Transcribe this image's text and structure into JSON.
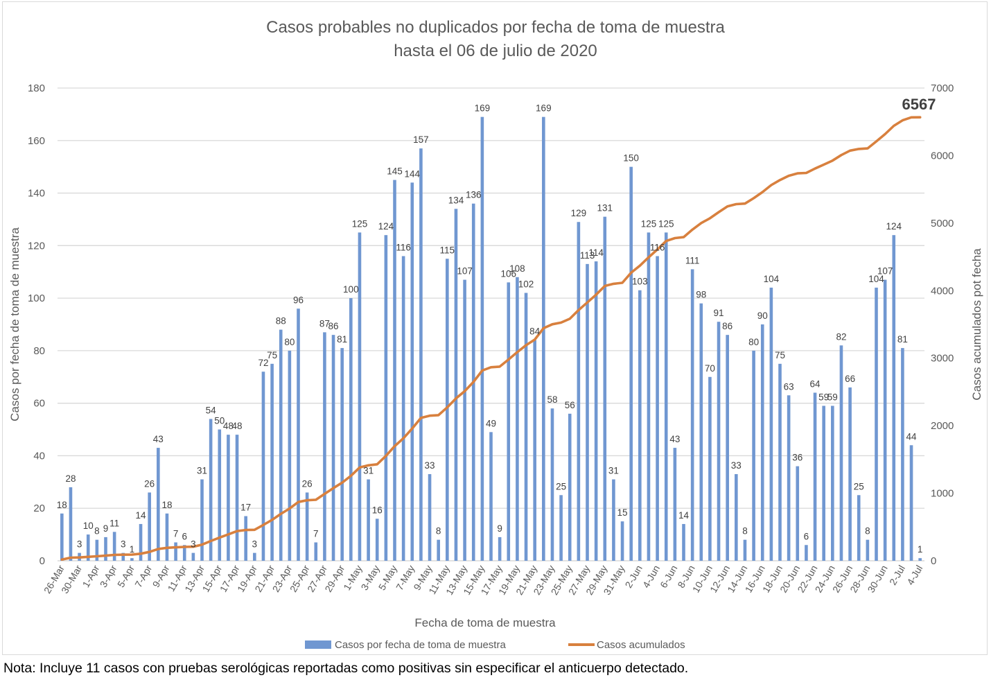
{
  "chart_data": {
    "type": "bar+line",
    "title": [
      "Casos probables no duplicados por fecha de toma de muestra",
      "hasta el 06 de julio de 2020"
    ],
    "xlabel": "Fecha de toma de muestra",
    "ylabel": "Casos por fecha de toma de muestra",
    "y2label": "Casos acumulados pot fecha",
    "ylim": [
      0,
      180
    ],
    "yticks": [
      0,
      20,
      40,
      60,
      80,
      100,
      120,
      140,
      160,
      180
    ],
    "y2lim": [
      0,
      7000
    ],
    "y2ticks": [
      0,
      1000,
      2000,
      3000,
      4000,
      5000,
      6000,
      7000
    ],
    "grid": true,
    "legend_position": "bottom",
    "categories": [
      "26-Mar",
      "28-Mar",
      "30-Mar",
      "31-Mar",
      "1-Apr",
      "2-Apr",
      "3-Apr",
      "4-Apr",
      "5-Apr",
      "6-Apr",
      "7-Apr",
      "8-Apr",
      "9-Apr",
      "10-Apr",
      "11-Apr",
      "12-Apr",
      "13-Apr",
      "14-Apr",
      "15-Apr",
      "16-Apr",
      "17-Apr",
      "18-Apr",
      "19-Apr",
      "20-Apr",
      "21-Apr",
      "22-Apr",
      "23-Apr",
      "24-Apr",
      "25-Apr",
      "26-Apr",
      "27-Apr",
      "28-Apr",
      "29-Apr",
      "30-Apr",
      "1-May",
      "2-May",
      "3-May",
      "4-May",
      "5-May",
      "6-May",
      "7-May",
      "8-May",
      "9-May",
      "10-May",
      "11-May",
      "12-May",
      "13-May",
      "14-May",
      "15-May",
      "16-May",
      "17-May",
      "18-May",
      "19-May",
      "20-May",
      "21-May",
      "22-May",
      "23-May",
      "24-May",
      "25-May",
      "26-May",
      "27-May",
      "28-May",
      "29-May",
      "30-May",
      "31-May",
      "1-Jun",
      "2-Jun",
      "3-Jun",
      "4-Jun",
      "5-Jun",
      "6-Jun",
      "7-Jun",
      "8-Jun",
      "9-Jun",
      "10-Jun",
      "11-Jun",
      "12-Jun",
      "13-Jun",
      "14-Jun",
      "15-Jun",
      "16-Jun",
      "17-Jun",
      "18-Jun",
      "19-Jun",
      "20-Jun",
      "21-Jun",
      "22-Jun",
      "23-Jun",
      "24-Jun",
      "25-Jun",
      "26-Jun",
      "27-Jun",
      "28-Jun",
      "29-Jun",
      "30-Jun",
      "1-Jul",
      "2-Jul",
      "3-Jul",
      "4-Jul"
    ],
    "tick_label_every": 2,
    "series": [
      {
        "name": "Casos por fecha de toma de muestra",
        "type": "bar",
        "axis": "left",
        "color": "#7097d1",
        "values": [
          18,
          28,
          3,
          10,
          8,
          9,
          11,
          3,
          1,
          14,
          26,
          43,
          18,
          7,
          6,
          3,
          31,
          54,
          50,
          48,
          48,
          17,
          3,
          72,
          75,
          88,
          80,
          96,
          26,
          7,
          87,
          86,
          81,
          100,
          125,
          31,
          16,
          124,
          145,
          116,
          144,
          157,
          33,
          8,
          115,
          134,
          107,
          136,
          169,
          49,
          9,
          106,
          108,
          102,
          84,
          169,
          58,
          25,
          56,
          129,
          113,
          114,
          131,
          31,
          15,
          150,
          103,
          125,
          116,
          125,
          43,
          14,
          111,
          98,
          70,
          91,
          86,
          33,
          8,
          80,
          90,
          104,
          75,
          63,
          36,
          6,
          64,
          59,
          59,
          82,
          66,
          25,
          8,
          104,
          107,
          124,
          81,
          44,
          1
        ]
      },
      {
        "name": "Casos acumulados",
        "type": "line",
        "axis": "right",
        "color": "#d8803e",
        "cumulative_of": "Casos por fecha de toma de muestra",
        "final_value_label": "6567"
      }
    ]
  },
  "footnote": "Nota: Incluye 11 casos con pruebas serológicas reportadas como positivas sin especificar el anticuerpo detectado."
}
